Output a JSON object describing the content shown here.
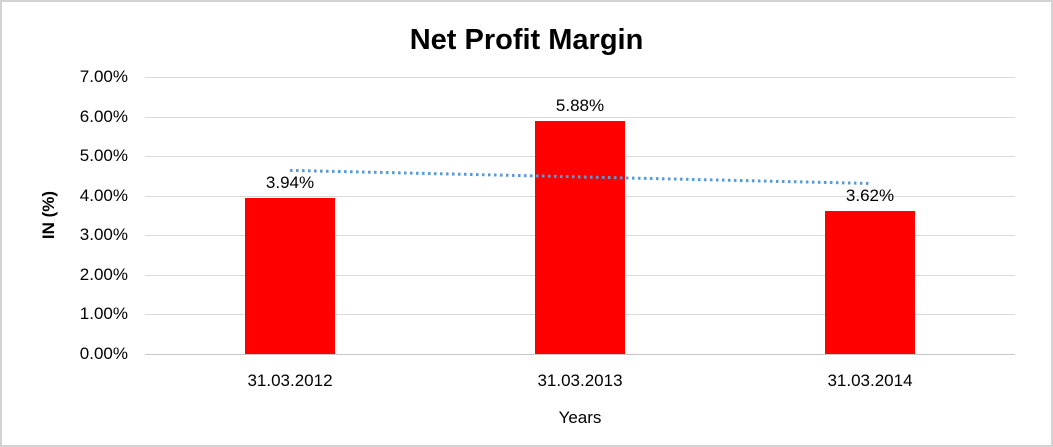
{
  "chart_data": {
    "type": "bar",
    "title": "Net Profit Margin",
    "categories": [
      "31.03.2012",
      "31.03.2013",
      "31.03.2014"
    ],
    "values": [
      3.94,
      5.88,
      3.62
    ],
    "data_labels": [
      "3.94%",
      "5.88%",
      "3.62%"
    ],
    "xlabel": "Years",
    "ylabel": "IN (%)",
    "ylim": [
      0,
      7
    ],
    "ytick_step": 1,
    "ytick_labels": [
      "0.00%",
      "1.00%",
      "2.00%",
      "3.00%",
      "4.00%",
      "5.00%",
      "6.00%",
      "7.00%"
    ],
    "grid": true,
    "legend": "none",
    "colors": {
      "bar": "#fe0000",
      "trendline": "#5b9bd5",
      "gridline": "#d9d9d9",
      "text": "#000000",
      "chart_border": "#d3d3d3"
    },
    "trendline": {
      "type": "linear",
      "style": "dotted",
      "start_value": 4.64,
      "end_value": 4.31
    }
  }
}
